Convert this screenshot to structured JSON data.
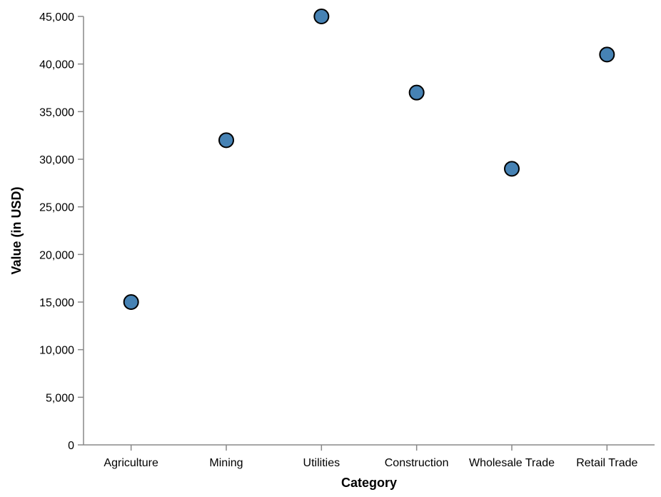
{
  "chart_data": {
    "type": "scatter",
    "categories": [
      "Agriculture",
      "Mining",
      "Utilities",
      "Construction",
      "Wholesale Trade",
      "Retail Trade"
    ],
    "values": [
      15000,
      32000,
      45000,
      37000,
      29000,
      41000
    ],
    "xlabel": "Category",
    "ylabel": "Value (in USD)",
    "ylim": [
      0,
      45000
    ],
    "yticks": [
      0,
      5000,
      10000,
      15000,
      20000,
      25000,
      30000,
      35000,
      40000,
      45000
    ],
    "ytick_labels": [
      "0",
      "5,000",
      "10,000",
      "15,000",
      "20,000",
      "25,000",
      "30,000",
      "35,000",
      "40,000",
      "45,000"
    ],
    "grid": false,
    "point_color": "#4682b4"
  }
}
